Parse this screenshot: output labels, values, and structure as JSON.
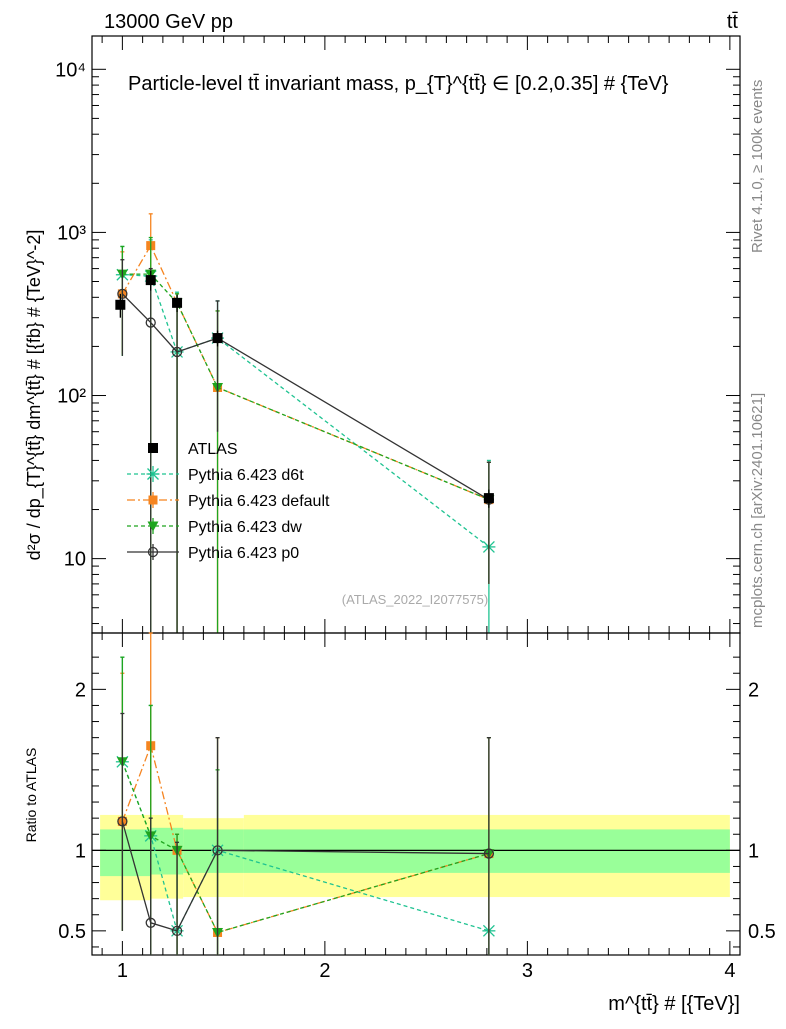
{
  "header": {
    "beam": "13000 GeV pp",
    "process": "tt̄"
  },
  "side_labels": {
    "rivet": "Rivet 4.1.0, ≥ 100k events",
    "site": "mcplots.cern.ch [arXiv:2401.10621]"
  },
  "colors": {
    "atlas": "#000000",
    "d6t": "#1fc391",
    "default": "#f5841f",
    "dw": "#1fa51f",
    "p0": "#333333",
    "band_inner": "#99ff99",
    "band_outer": "#ffff99"
  },
  "chart_data": [
    {
      "type": "scatter",
      "title": "Particle-level tt̄ invariant mass, p_{T}^{tt̄} ∈ [0.2,0.35] # {TeV}",
      "ylabel": "d²σ / dp_{T}^{tt̄} dm^{tt̄} # [{fb} # {TeV}^-2]",
      "xlabel": "m^{tt̄} # [{TeV}]",
      "yscale": "log",
      "ylim": [
        3.5,
        16000
      ],
      "xlim": [
        0.85,
        4.05
      ],
      "ytick_labels": [
        "10",
        "10²",
        "10³",
        "10⁴"
      ],
      "watermark": "(ATLAS_2022_I2077575)",
      "series": [
        {
          "name": "ATLAS",
          "style": "data",
          "x": [
            0.99,
            1.14,
            1.27,
            1.47,
            2.81
          ],
          "y": [
            360,
            510,
            370,
            225,
            23.5
          ],
          "yerr": [
            60,
            70,
            45,
            25,
            3
          ]
        },
        {
          "name": "Pythia 6.423 d6t",
          "style": "dashed",
          "x": [
            1.0,
            1.14,
            1.27,
            1.47,
            2.81
          ],
          "y": [
            550,
            540,
            185,
            225,
            11.8
          ],
          "ylo": [
            175,
            3.5,
            3.5,
            60,
            3.5
          ],
          "yhi": [
            820,
            900,
            430,
            380,
            40
          ]
        },
        {
          "name": "Pythia 6.423 default",
          "style": "dashdot",
          "x": [
            1.0,
            1.14,
            1.27,
            1.47,
            2.81
          ],
          "y": [
            420,
            830,
            370,
            112,
            23
          ],
          "ylo": [
            180,
            3.5,
            3.5,
            3.5,
            7
          ],
          "yhi": [
            760,
            1300,
            420,
            330,
            39
          ]
        },
        {
          "name": "Pythia 6.423 dw",
          "style": "dashed",
          "x": [
            1.0,
            1.14,
            1.27,
            1.47,
            2.81
          ],
          "y": [
            555,
            555,
            370,
            112,
            23
          ],
          "ylo": [
            175,
            3.5,
            3.5,
            3.5,
            7
          ],
          "yhi": [
            820,
            930,
            420,
            330,
            39
          ]
        },
        {
          "name": "Pythia 6.423 p0",
          "style": "solid",
          "x": [
            1.0,
            1.14,
            1.27,
            1.47,
            2.81
          ],
          "y": [
            420,
            280,
            185,
            225,
            23
          ],
          "ylo": [
            175,
            3.5,
            3.5,
            60,
            7
          ],
          "yhi": [
            680,
            600,
            390,
            380,
            39
          ]
        }
      ]
    },
    {
      "type": "scatter",
      "ylabel": "Ratio to ATLAS",
      "xlabel": "m^{tt̄} # [{TeV}]",
      "ylim": [
        0.35,
        2.35
      ],
      "xlim": [
        0.85,
        4.05
      ],
      "ytick_labels": [
        "0.5",
        "1",
        "2"
      ],
      "xtick_labels": [
        "1",
        "2",
        "3",
        "4"
      ],
      "bands": {
        "x_edges": [
          0.89,
          1.14,
          1.3,
          1.6,
          4.0
        ],
        "inner_lo": [
          0.84,
          0.85,
          0.86,
          0.86
        ],
        "inner_hi": [
          1.13,
          1.14,
          1.13,
          1.13
        ],
        "outer_lo": [
          0.69,
          0.7,
          0.71,
          0.71
        ],
        "outer_hi": [
          1.22,
          1.22,
          1.2,
          1.22
        ]
      },
      "series": [
        {
          "name": "Pythia 6.423 d6t",
          "style": "dashed",
          "x": [
            1.0,
            1.14,
            1.27,
            1.47,
            2.81
          ],
          "y": [
            1.55,
            1.09,
            0.5,
            1.0,
            0.5
          ],
          "ylo": [
            0.5,
            0.35,
            0.35,
            0.35,
            0.35
          ],
          "yhi": [
            2.2,
            1.9,
            1.1,
            1.7,
            0.5
          ]
        },
        {
          "name": "Pythia 6.423 default",
          "style": "dashdot",
          "x": [
            1.0,
            1.14,
            1.27,
            1.47,
            2.81
          ],
          "y": [
            1.18,
            1.65,
            1.0,
            0.49,
            0.98
          ],
          "ylo": [
            0.5,
            0.35,
            0.35,
            0.35,
            0.35
          ],
          "yhi": [
            2.1,
            2.35,
            1.1,
            1.7,
            1.7
          ]
        },
        {
          "name": "Pythia 6.423 dw",
          "style": "dashed",
          "x": [
            1.0,
            1.14,
            1.27,
            1.47,
            2.81
          ],
          "y": [
            1.55,
            1.09,
            1.0,
            0.49,
            0.98
          ],
          "ylo": [
            0.5,
            0.35,
            0.35,
            0.35,
            0.35
          ],
          "yhi": [
            2.2,
            1.9,
            1.1,
            1.5,
            1.7
          ]
        },
        {
          "name": "Pythia 6.423 p0",
          "style": "solid",
          "x": [
            1.0,
            1.14,
            1.27,
            1.47,
            2.81
          ],
          "y": [
            1.18,
            0.55,
            0.5,
            1.0,
            0.98
          ],
          "ylo": [
            0.5,
            0.35,
            0.35,
            0.35,
            0.35
          ],
          "yhi": [
            1.85,
            1.2,
            1.05,
            1.7,
            1.7
          ]
        }
      ]
    }
  ]
}
